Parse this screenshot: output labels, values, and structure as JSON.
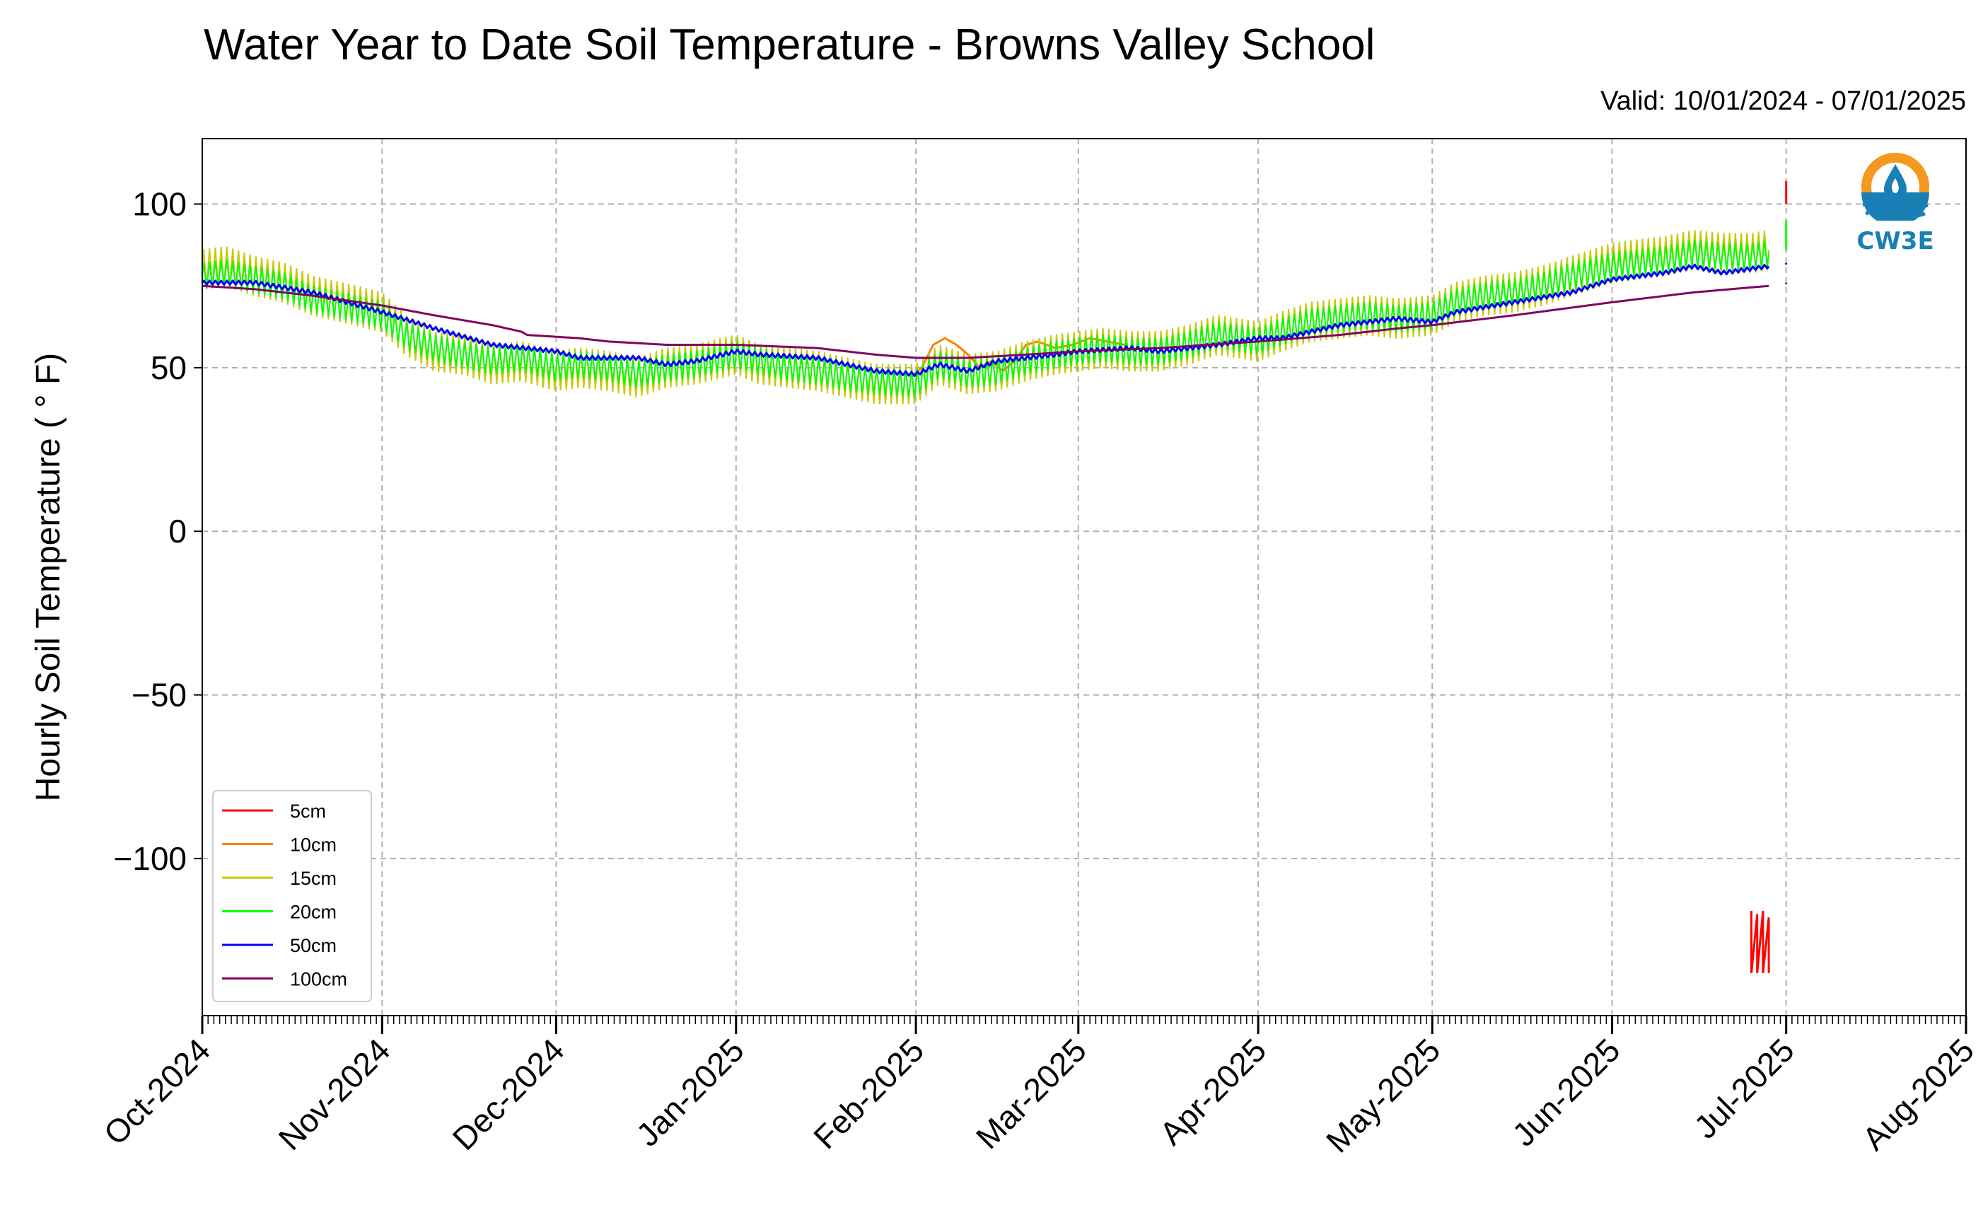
{
  "chart_data": {
    "type": "line",
    "title": "Water Year to Date Soil Temperature - Browns Valley School",
    "subtitle": "Valid: 10/01/2024 - 07/01/2025",
    "xlabel": "",
    "ylabel": "Hourly Soil Temperature ( $^\\circ$F)",
    "ylabel_display": "Hourly Soil Temperature ( ° F)",
    "xlim": [
      "2024-10-01",
      "2025-08-01"
    ],
    "ylim": [
      -148,
      120
    ],
    "yticks": [
      100,
      50,
      0,
      -50,
      -100
    ],
    "ytick_labels": [
      "100",
      "50",
      "0",
      "−50",
      "−100"
    ],
    "xticks": [
      "2024-10-01",
      "2024-11-01",
      "2024-12-01",
      "2025-01-01",
      "2025-02-01",
      "2025-03-01",
      "2025-04-01",
      "2025-05-01",
      "2025-06-01",
      "2025-07-01",
      "2025-08-01"
    ],
    "xtick_labels": [
      "Oct-2024",
      "Nov-2024",
      "Dec-2024",
      "Jan-2025",
      "Feb-2025",
      "Mar-2025",
      "Apr-2025",
      "May-2025",
      "Jun-2025",
      "Jul-2025",
      "Aug-2025"
    ],
    "grid": true,
    "legend_position": "lower-left",
    "series": [
      {
        "name": "5cm",
        "color": "#ff0000",
        "segments": [
          [
            [
              "2025-06-25",
              -116
            ],
            [
              "2025-06-25",
              -135
            ],
            [
              "2025-06-26",
              -117
            ],
            [
              "2025-06-26",
              -135
            ],
            [
              "2025-06-27",
              -116
            ],
            [
              "2025-06-27",
              -135
            ],
            [
              "2025-06-28",
              -118
            ],
            [
              "2025-06-28",
              -135
            ],
            [
              "2025-06-28",
              -119
            ]
          ],
          [
            [
              "2025-07-01",
              100
            ],
            [
              "2025-07-01",
              107
            ]
          ]
        ]
      },
      {
        "name": "10cm",
        "color": "#ff8000",
        "segments": [
          [
            [
              "2025-01-31",
              47
            ],
            [
              "2025-02-02",
              50
            ],
            [
              "2025-02-04",
              57
            ],
            [
              "2025-02-06",
              59
            ],
            [
              "2025-02-08",
              57
            ],
            [
              "2025-02-10",
              54
            ],
            [
              "2025-02-12",
              50
            ],
            [
              "2025-02-14",
              52
            ],
            [
              "2025-02-16",
              49
            ],
            [
              "2025-02-18",
              52
            ],
            [
              "2025-02-20",
              57
            ],
            [
              "2025-02-22",
              58
            ],
            [
              "2025-02-25",
              56
            ],
            [
              "2025-02-28",
              57
            ],
            [
              "2025-03-03",
              59
            ],
            [
              "2025-03-06",
              58
            ],
            [
              "2025-03-09",
              57
            ]
          ]
        ]
      },
      {
        "name": "15cm",
        "color": "#c8c800",
        "points": [
          [
            "2024-10-01",
            80
          ],
          [
            "2024-10-05",
            81
          ],
          [
            "2024-10-10",
            78
          ],
          [
            "2024-10-15",
            76
          ],
          [
            "2024-10-20",
            72
          ],
          [
            "2024-10-25",
            70
          ],
          [
            "2024-11-01",
            67
          ],
          [
            "2024-11-05",
            60
          ],
          [
            "2024-11-10",
            55
          ],
          [
            "2024-11-15",
            54
          ],
          [
            "2024-11-20",
            51
          ],
          [
            "2024-11-25",
            52
          ],
          [
            "2024-12-01",
            49
          ],
          [
            "2024-12-05",
            50
          ],
          [
            "2024-12-10",
            49
          ],
          [
            "2024-12-15",
            47
          ],
          [
            "2024-12-20",
            50
          ],
          [
            "2024-12-25",
            51
          ],
          [
            "2025-01-01",
            54
          ],
          [
            "2025-01-05",
            51
          ],
          [
            "2025-01-10",
            50
          ],
          [
            "2025-01-15",
            49
          ],
          [
            "2025-01-20",
            47
          ],
          [
            "2025-01-25",
            45
          ],
          [
            "2025-02-01",
            45
          ],
          [
            "2025-02-05",
            51
          ],
          [
            "2025-02-10",
            48
          ],
          [
            "2025-02-15",
            49
          ],
          [
            "2025-02-20",
            52
          ],
          [
            "2025-02-25",
            54
          ],
          [
            "2025-03-01",
            55
          ],
          [
            "2025-03-05",
            56
          ],
          [
            "2025-03-10",
            55
          ],
          [
            "2025-03-15",
            55
          ],
          [
            "2025-03-20",
            57
          ],
          [
            "2025-03-25",
            60
          ],
          [
            "2025-04-01",
            58
          ],
          [
            "2025-04-05",
            61
          ],
          [
            "2025-04-10",
            64
          ],
          [
            "2025-04-15",
            65
          ],
          [
            "2025-04-20",
            66
          ],
          [
            "2025-04-25",
            65
          ],
          [
            "2025-05-01",
            66
          ],
          [
            "2025-05-05",
            70
          ],
          [
            "2025-05-10",
            72
          ],
          [
            "2025-05-15",
            73
          ],
          [
            "2025-05-20",
            75
          ],
          [
            "2025-05-25",
            78
          ],
          [
            "2025-06-01",
            82
          ],
          [
            "2025-06-05",
            83
          ],
          [
            "2025-06-10",
            84
          ],
          [
            "2025-06-15",
            86
          ],
          [
            "2025-06-20",
            85
          ],
          [
            "2025-06-25",
            85
          ],
          [
            "2025-06-28",
            86
          ]
        ],
        "amplitude": 6
      },
      {
        "name": "20cm",
        "color": "#00ff00",
        "points": [
          [
            "2024-10-01",
            78
          ],
          [
            "2024-10-05",
            79
          ],
          [
            "2024-10-10",
            77
          ],
          [
            "2024-10-15",
            75
          ],
          [
            "2024-10-20",
            71
          ],
          [
            "2024-10-25",
            69
          ],
          [
            "2024-11-01",
            66
          ],
          [
            "2024-11-05",
            60
          ],
          [
            "2024-11-10",
            56
          ],
          [
            "2024-11-15",
            54
          ],
          [
            "2024-11-20",
            52
          ],
          [
            "2024-11-25",
            53
          ],
          [
            "2024-12-01",
            50
          ],
          [
            "2024-12-05",
            51
          ],
          [
            "2024-12-10",
            50
          ],
          [
            "2024-12-15",
            48
          ],
          [
            "2024-12-20",
            50
          ],
          [
            "2024-12-25",
            51
          ],
          [
            "2025-01-01",
            54
          ],
          [
            "2025-01-05",
            52
          ],
          [
            "2025-01-10",
            50
          ],
          [
            "2025-01-15",
            49
          ],
          [
            "2025-01-20",
            47
          ],
          [
            "2025-01-25",
            46
          ],
          [
            "2025-02-01",
            45
          ],
          [
            "2025-02-05",
            51
          ],
          [
            "2025-02-10",
            48
          ],
          [
            "2025-02-15",
            49
          ],
          [
            "2025-02-20",
            52
          ],
          [
            "2025-02-25",
            54
          ],
          [
            "2025-03-01",
            55
          ],
          [
            "2025-03-05",
            56
          ],
          [
            "2025-03-10",
            55
          ],
          [
            "2025-03-15",
            55
          ],
          [
            "2025-03-20",
            57
          ],
          [
            "2025-03-25",
            60
          ],
          [
            "2025-04-01",
            58
          ],
          [
            "2025-04-05",
            61
          ],
          [
            "2025-04-10",
            64
          ],
          [
            "2025-04-15",
            65
          ],
          [
            "2025-04-20",
            66
          ],
          [
            "2025-04-25",
            65
          ],
          [
            "2025-05-01",
            66
          ],
          [
            "2025-05-05",
            70
          ],
          [
            "2025-05-10",
            72
          ],
          [
            "2025-05-15",
            73
          ],
          [
            "2025-05-20",
            75
          ],
          [
            "2025-05-25",
            78
          ],
          [
            "2025-06-01",
            81
          ],
          [
            "2025-06-05",
            82
          ],
          [
            "2025-06-10",
            83
          ],
          [
            "2025-06-15",
            85
          ],
          [
            "2025-06-20",
            84
          ],
          [
            "2025-06-25",
            84
          ],
          [
            "2025-06-28",
            85
          ]
        ],
        "amplitude": 4,
        "extra_segments": [
          [
            [
              "2025-07-01",
              86
            ],
            [
              "2025-07-01",
              95
            ]
          ]
        ]
      },
      {
        "name": "50cm",
        "color": "#0000ff",
        "points": [
          [
            "2024-10-01",
            76
          ],
          [
            "2024-10-10",
            76
          ],
          [
            "2024-10-20",
            73
          ],
          [
            "2024-11-01",
            67
          ],
          [
            "2024-11-10",
            62
          ],
          [
            "2024-11-20",
            57
          ],
          [
            "2024-12-01",
            55
          ],
          [
            "2024-12-05",
            53
          ],
          [
            "2024-12-15",
            53
          ],
          [
            "2024-12-20",
            51
          ],
          [
            "2024-12-25",
            52
          ],
          [
            "2025-01-01",
            55
          ],
          [
            "2025-01-05",
            54
          ],
          [
            "2025-01-15",
            53
          ],
          [
            "2025-01-25",
            49
          ],
          [
            "2025-02-01",
            48
          ],
          [
            "2025-02-05",
            51
          ],
          [
            "2025-02-10",
            49
          ],
          [
            "2025-02-15",
            52
          ],
          [
            "2025-02-25",
            54
          ],
          [
            "2025-03-01",
            55
          ],
          [
            "2025-03-10",
            56
          ],
          [
            "2025-03-15",
            55
          ],
          [
            "2025-03-25",
            57
          ],
          [
            "2025-04-01",
            59
          ],
          [
            "2025-04-05",
            59
          ],
          [
            "2025-04-15",
            63
          ],
          [
            "2025-04-25",
            65
          ],
          [
            "2025-05-01",
            64
          ],
          [
            "2025-05-05",
            67
          ],
          [
            "2025-05-15",
            70
          ],
          [
            "2025-05-25",
            73
          ],
          [
            "2025-06-01",
            77
          ],
          [
            "2025-06-10",
            79
          ],
          [
            "2025-06-15",
            81
          ],
          [
            "2025-06-20",
            79
          ],
          [
            "2025-06-28",
            81
          ]
        ],
        "amplitude": 0.6,
        "extra_segments": [
          [
            [
              "2025-07-01",
              82
            ],
            [
              "2025-07-01",
              81.5
            ]
          ]
        ]
      },
      {
        "name": "100cm",
        "color": "#800060",
        "points": [
          [
            "2024-10-01",
            75
          ],
          [
            "2024-10-10",
            74
          ],
          [
            "2024-10-20",
            72
          ],
          [
            "2024-11-01",
            69
          ],
          [
            "2024-11-10",
            66
          ],
          [
            "2024-11-20",
            63
          ],
          [
            "2024-11-25",
            61
          ],
          [
            "2024-11-26",
            60
          ],
          [
            "2024-12-05",
            59
          ],
          [
            "2024-12-10",
            58
          ],
          [
            "2024-12-20",
            57
          ],
          [
            "2025-01-01",
            57
          ],
          [
            "2025-01-15",
            56
          ],
          [
            "2025-01-25",
            54
          ],
          [
            "2025-02-01",
            53
          ],
          [
            "2025-02-10",
            53
          ],
          [
            "2025-02-20",
            54
          ],
          [
            "2025-03-01",
            55
          ],
          [
            "2025-03-15",
            56
          ],
          [
            "2025-04-01",
            58
          ],
          [
            "2025-04-15",
            60
          ],
          [
            "2025-04-25",
            62
          ],
          [
            "2025-05-01",
            63
          ],
          [
            "2025-05-15",
            66
          ],
          [
            "2025-06-01",
            70
          ],
          [
            "2025-06-15",
            73
          ],
          [
            "2025-06-28",
            75
          ]
        ],
        "amplitude": 0,
        "extra_segments": [
          [
            [
              "2025-07-01",
              76
            ],
            [
              "2025-07-01",
              75.5
            ]
          ]
        ]
      }
    ]
  },
  "logo": {
    "text": "CW3E",
    "colors": {
      "orange": "#f39a1e",
      "blue": "#1a7fb5"
    }
  }
}
